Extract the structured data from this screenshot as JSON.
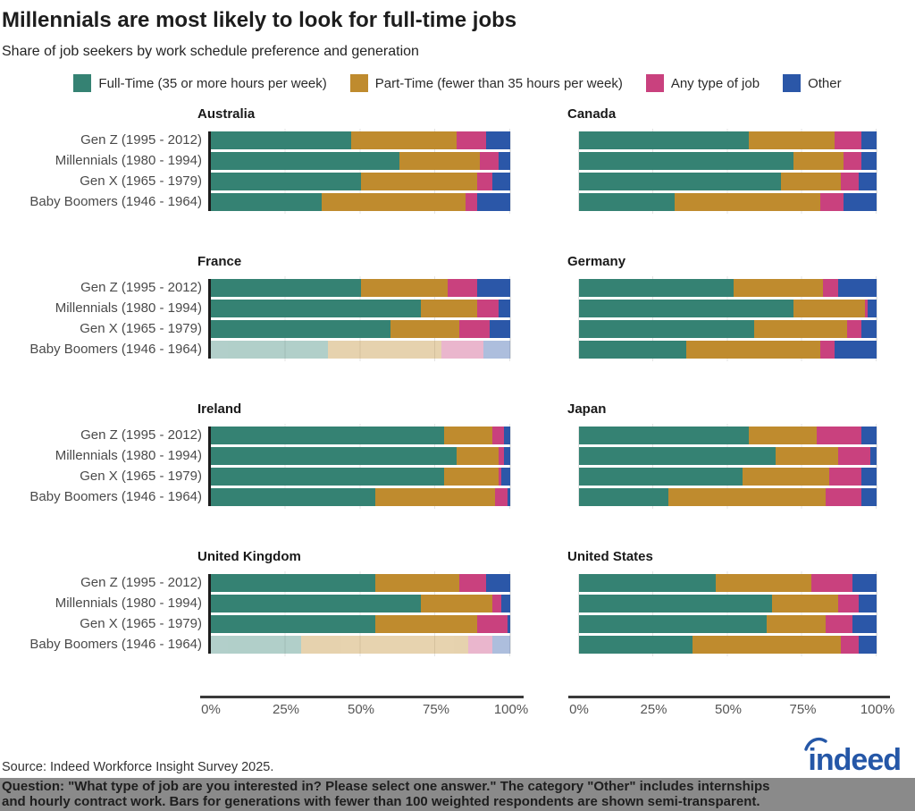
{
  "header": {
    "title": "Millennials are most likely to look for full-time jobs",
    "subtitle": "Share of job seekers by work schedule preference and generation"
  },
  "legend": {
    "items": [
      {
        "label": "Full-Time (35 or more hours per week)",
        "color": "#358273"
      },
      {
        "label": "Part-Time (fewer than 35 hours per week)",
        "color": "#BF8B2E"
      },
      {
        "label": "Any type of job",
        "color": "#C9417E"
      },
      {
        "label": "Other",
        "color": "#2B57A8"
      }
    ]
  },
  "colors": {
    "full_time": "#358273",
    "part_time": "#BF8B2E",
    "any_type": "#C9417E",
    "other": "#2B57A8",
    "axis_spine": "#1c1c1c",
    "gridline": "#e4e4e4",
    "note_band_bg": "#8a8a8a",
    "logo_blue": "#2557a7"
  },
  "chart_data": {
    "type": "bar",
    "stacked": true,
    "orientation": "horizontal",
    "unit": "percent",
    "xlim": [
      0,
      100
    ],
    "grid": true,
    "x_ticks": [
      "0%",
      "25%",
      "50%",
      "75%",
      "100%"
    ],
    "generations": [
      "Gen Z (1995 - 2012)",
      "Millennials (1980 - 1994)",
      "Gen X (1965 - 1979)",
      "Baby Boomers (1946 - 1964)"
    ],
    "series_names": [
      "Full-Time (35 or more hours per week)",
      "Part-Time (fewer than 35 hours per week)",
      "Any type of job",
      "Other"
    ],
    "panels": [
      {
        "country": "Australia",
        "rows": [
          {
            "values": [
              47,
              35,
              10,
              8
            ],
            "muted": false
          },
          {
            "values": [
              63,
              27,
              6,
              4
            ],
            "muted": false
          },
          {
            "values": [
              50,
              39,
              5,
              6
            ],
            "muted": false
          },
          {
            "values": [
              37,
              48,
              4,
              11
            ],
            "muted": false
          }
        ]
      },
      {
        "country": "Canada",
        "rows": [
          {
            "values": [
              57,
              29,
              9,
              5
            ],
            "muted": false
          },
          {
            "values": [
              72,
              17,
              6,
              5
            ],
            "muted": false
          },
          {
            "values": [
              68,
              20,
              6,
              6
            ],
            "muted": false
          },
          {
            "values": [
              32,
              49,
              8,
              11
            ],
            "muted": false
          }
        ]
      },
      {
        "country": "France",
        "rows": [
          {
            "values": [
              50,
              29,
              10,
              11
            ],
            "muted": false
          },
          {
            "values": [
              70,
              19,
              7,
              4
            ],
            "muted": false
          },
          {
            "values": [
              60,
              23,
              10,
              7
            ],
            "muted": false
          },
          {
            "values": [
              39,
              38,
              14,
              9
            ],
            "muted": true
          }
        ]
      },
      {
        "country": "Germany",
        "rows": [
          {
            "values": [
              52,
              30,
              5,
              13
            ],
            "muted": false
          },
          {
            "values": [
              72,
              24,
              1,
              3
            ],
            "muted": false
          },
          {
            "values": [
              59,
              31,
              5,
              5
            ],
            "muted": false
          },
          {
            "values": [
              36,
              45,
              5,
              14
            ],
            "muted": false
          }
        ]
      },
      {
        "country": "Ireland",
        "rows": [
          {
            "values": [
              78,
              16,
              4,
              2
            ],
            "muted": false
          },
          {
            "values": [
              82,
              14,
              2,
              2
            ],
            "muted": false
          },
          {
            "values": [
              78,
              18,
              1,
              3
            ],
            "muted": false
          },
          {
            "values": [
              55,
              40,
              4,
              1
            ],
            "muted": false
          }
        ]
      },
      {
        "country": "Japan",
        "rows": [
          {
            "values": [
              57,
              23,
              15,
              5
            ],
            "muted": false
          },
          {
            "values": [
              66,
              21,
              11,
              2
            ],
            "muted": false
          },
          {
            "values": [
              55,
              29,
              11,
              5
            ],
            "muted": false
          },
          {
            "values": [
              30,
              53,
              12,
              5
            ],
            "muted": false
          }
        ]
      },
      {
        "country": "United Kingdom",
        "rows": [
          {
            "values": [
              55,
              28,
              9,
              8
            ],
            "muted": false
          },
          {
            "values": [
              70,
              24,
              3,
              3
            ],
            "muted": false
          },
          {
            "values": [
              55,
              34,
              10,
              1
            ],
            "muted": false
          },
          {
            "values": [
              30,
              56,
              8,
              6
            ],
            "muted": true
          }
        ]
      },
      {
        "country": "United States",
        "rows": [
          {
            "values": [
              46,
              32,
              14,
              8
            ],
            "muted": false
          },
          {
            "values": [
              65,
              22,
              7,
              6
            ],
            "muted": false
          },
          {
            "values": [
              63,
              20,
              9,
              8
            ],
            "muted": false
          },
          {
            "values": [
              38,
              50,
              6,
              6
            ],
            "muted": false
          }
        ]
      }
    ]
  },
  "footer": {
    "source": "Source: Indeed Workforce Insight Survey 2025.",
    "note_line1": "Question: \"What type of job are you interested in? Please select one answer.\" The category \"Other\" includes internships",
    "note_line2": "and hourly contract work. Bars for generations with fewer than 100 weighted respondents are shown semi-transparent.",
    "logo_text": "indeed"
  }
}
